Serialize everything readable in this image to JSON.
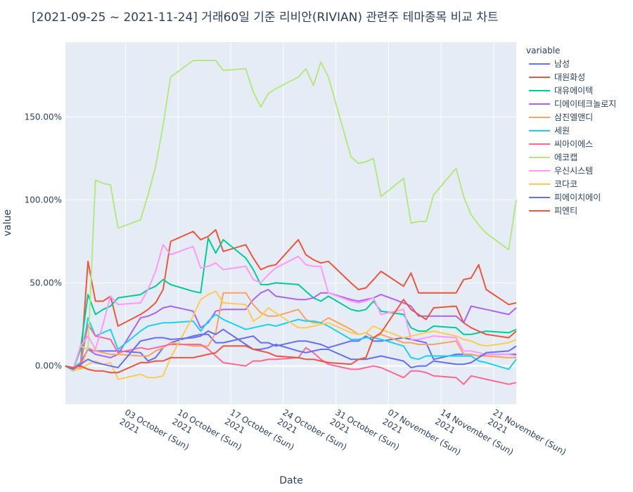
{
  "chart_data": {
    "type": "line",
    "title": "[2021-09-25 ~ 2021-11-24] 거래60일 기준 리비안(RIVIAN) 관련주 테마종목 비교 차트",
    "xlabel": "Date",
    "ylabel": "value",
    "legend_title": "variable",
    "legend_position": "right",
    "grid": true,
    "x_range": [
      "2021-09-25",
      "2021-11-24"
    ],
    "ylim": [
      -0.23,
      1.95
    ],
    "yticks": [
      0,
      0.5,
      1.0,
      1.5
    ],
    "ytick_labels": [
      "0.00%",
      "50.00%",
      "100.00%",
      "150.00%"
    ],
    "xticks": [
      "2021-10-03",
      "2021-10-10",
      "2021-10-17",
      "2021-10-24",
      "2021-10-31",
      "2021-11-07",
      "2021-11-14",
      "2021-11-21"
    ],
    "xtick_labels": [
      [
        "03 October (Sun)",
        "2021"
      ],
      [
        "10 October (Sun)",
        "2021"
      ],
      [
        "17 October (Sun)",
        "2021"
      ],
      [
        "24 October (Sun)",
        "2021"
      ],
      [
        "31 October (Sun)",
        "2021"
      ],
      [
        "07 November (Sun)",
        "2021"
      ],
      [
        "14 November (Sun)",
        "2021"
      ],
      [
        "21 November (Sun)",
        "2021"
      ]
    ],
    "dates": [
      "2021-09-25",
      "2021-09-26",
      "2021-09-27",
      "2021-09-28",
      "2021-09-29",
      "2021-09-30",
      "2021-10-01",
      "2021-10-02",
      "2021-10-05",
      "2021-10-06",
      "2021-10-07",
      "2021-10-08",
      "2021-10-09",
      "2021-10-12",
      "2021-10-13",
      "2021-10-14",
      "2021-10-15",
      "2021-10-16",
      "2021-10-19",
      "2021-10-20",
      "2021-10-21",
      "2021-10-22",
      "2021-10-23",
      "2021-10-26",
      "2021-10-27",
      "2021-10-28",
      "2021-10-29",
      "2021-10-30",
      "2021-11-02",
      "2021-11-03",
      "2021-11-04",
      "2021-11-05",
      "2021-11-06",
      "2021-11-09",
      "2021-11-10",
      "2021-11-11",
      "2021-11-12",
      "2021-11-13",
      "2021-11-16",
      "2021-11-17",
      "2021-11-18",
      "2021-11-19",
      "2021-11-20",
      "2021-11-23",
      "2021-11-24"
    ],
    "series": [
      {
        "name": "남성",
        "color": "#636efa",
        "values": [
          0,
          -0.03,
          0.02,
          0.1,
          0.09,
          0.09,
          0.09,
          0.09,
          0.08,
          0.03,
          0.05,
          0.11,
          0.14,
          0.18,
          0.19,
          0.19,
          0.14,
          0.14,
          0.17,
          0.18,
          0.14,
          0.14,
          0.12,
          0.15,
          0.15,
          0.14,
          0.13,
          0.11,
          0.15,
          0.15,
          0.18,
          0.15,
          0.15,
          0.17,
          0.16,
          0.15,
          0.14,
          0.04,
          0.07,
          0.07,
          0.07,
          0.06,
          0.07,
          0.07,
          0.07
        ]
      },
      {
        "name": "대원화성",
        "color": "#ef553b",
        "values": [
          0,
          -0.03,
          -0.01,
          0.63,
          0.39,
          0.39,
          0.42,
          0.24,
          0.31,
          0.34,
          0.38,
          0.46,
          0.75,
          0.81,
          0.76,
          0.78,
          0.82,
          0.69,
          0.73,
          0.65,
          0.58,
          0.6,
          0.61,
          0.76,
          0.67,
          0.64,
          0.62,
          0.63,
          0.5,
          0.46,
          0.47,
          0.52,
          0.57,
          0.48,
          0.56,
          0.44,
          0.44,
          0.44,
          0.44,
          0.52,
          0.53,
          0.61,
          0.46,
          0.37,
          0.38
        ]
      },
      {
        "name": "대유에이텍",
        "color": "#00cc96",
        "values": [
          0,
          -0.03,
          0.1,
          0.43,
          0.31,
          0.34,
          0.36,
          0.41,
          0.43,
          0.46,
          0.48,
          0.52,
          0.49,
          0.45,
          0.44,
          0.77,
          0.68,
          0.76,
          0.65,
          0.58,
          0.49,
          0.49,
          0.5,
          0.49,
          0.45,
          0.41,
          0.39,
          0.42,
          0.34,
          0.33,
          0.34,
          0.39,
          0.33,
          0.31,
          0.23,
          0.21,
          0.21,
          0.24,
          0.23,
          0.19,
          0.19,
          0.2,
          0.21,
          0.2,
          0.22
        ]
      },
      {
        "name": "디에이테크놀로지",
        "color": "#ab63fa",
        "values": [
          0,
          -0.01,
          0.01,
          0.1,
          0.07,
          0.06,
          0.05,
          0.07,
          0.29,
          0.3,
          0.32,
          0.35,
          0.36,
          0.33,
          0.23,
          0.26,
          0.33,
          0.34,
          0.34,
          0.4,
          0.44,
          0.46,
          0.42,
          0.4,
          0.4,
          0.41,
          0.44,
          0.44,
          0.4,
          0.39,
          0.4,
          0.41,
          0.43,
          0.38,
          0.36,
          0.3,
          0.3,
          0.3,
          0.3,
          0.26,
          0.36,
          0.35,
          0.34,
          0.31,
          0.35
        ]
      },
      {
        "name": "삼진엘앤디",
        "color": "#ffa15a",
        "values": [
          0,
          -0.03,
          -0.01,
          0.11,
          0.09,
          0.08,
          0.07,
          0.07,
          0.06,
          0.06,
          0.09,
          0.11,
          0.14,
          0.12,
          0.12,
          0.12,
          0.2,
          0.44,
          0.44,
          0.37,
          0.32,
          0.3,
          0.3,
          0.34,
          0.28,
          0.26,
          0.26,
          0.29,
          0.22,
          0.19,
          0.2,
          0.17,
          0.19,
          0.14,
          0.14,
          0.13,
          0.13,
          0.13,
          0.15,
          0.07,
          0.07,
          0.06,
          0.06,
          0.05,
          0.05
        ]
      },
      {
        "name": "세원",
        "color": "#19d3f3",
        "values": [
          0,
          -0.01,
          0.02,
          0.29,
          0.18,
          0.2,
          0.22,
          0.1,
          0.21,
          0.24,
          0.25,
          0.26,
          0.26,
          0.27,
          0.21,
          0.27,
          0.31,
          0.28,
          0.22,
          0.23,
          0.24,
          0.25,
          0.24,
          0.28,
          0.27,
          0.27,
          0.26,
          0.24,
          0.16,
          0.16,
          0.17,
          0.17,
          0.16,
          0.12,
          0.05,
          0.04,
          0.06,
          0.06,
          0.06,
          0.06,
          0.06,
          0.03,
          0.02,
          -0.02,
          0.04
        ]
      },
      {
        "name": "씨아이에스",
        "color": "#ff6692",
        "values": [
          0,
          -0.01,
          0.01,
          0.25,
          0.18,
          0.17,
          0.16,
          0.08,
          0.11,
          0.1,
          0.11,
          0.12,
          0.13,
          0.13,
          0.13,
          0.1,
          0.06,
          0.02,
          0,
          0.03,
          0.03,
          0.04,
          0.04,
          0.05,
          0.11,
          0.08,
          0.04,
          0.01,
          -0.02,
          -0.02,
          -0.01,
          0,
          -0.01,
          -0.07,
          -0.03,
          -0.03,
          -0.04,
          -0.06,
          -0.07,
          -0.11,
          -0.06,
          -0.07,
          -0.08,
          -0.11,
          -0.1
        ]
      },
      {
        "name": "에코캡",
        "color": "#b6e880",
        "values": [
          0,
          -0.03,
          0.12,
          0.1,
          1.12,
          1.1,
          1.09,
          0.83,
          0.88,
          1.03,
          1.2,
          1.45,
          1.74,
          1.84,
          1.84,
          1.84,
          1.84,
          1.78,
          1.79,
          1.65,
          1.56,
          1.64,
          1.67,
          1.74,
          1.79,
          1.69,
          1.83,
          1.74,
          1.26,
          1.22,
          1.23,
          1.25,
          1.02,
          1.13,
          0.86,
          0.87,
          0.87,
          1.03,
          1.19,
          1.02,
          0.91,
          0.85,
          0.8,
          0.7,
          1.0
        ]
      },
      {
        "name": "우신시스템",
        "color": "#ff97ff",
        "values": [
          0,
          -0.02,
          0.12,
          0.18,
          0.1,
          0.25,
          0.42,
          0.37,
          0.38,
          0.46,
          0.57,
          0.73,
          0.67,
          0.72,
          0.59,
          0.6,
          0.62,
          0.58,
          0.6,
          0.52,
          0.5,
          0.55,
          0.59,
          0.66,
          0.61,
          0.6,
          0.6,
          0.44,
          0.39,
          0.38,
          0.39,
          0.41,
          0.31,
          0.34,
          0.16,
          0.16,
          0.17,
          0.18,
          0.17,
          0.09,
          0.09,
          0.08,
          0.07,
          0.07,
          0.06
        ]
      },
      {
        "name": "코다코",
        "color": "#fecb52",
        "values": [
          0,
          -0.02,
          -0.02,
          0.01,
          0.03,
          0.01,
          0.02,
          -0.08,
          -0.05,
          -0.07,
          -0.07,
          -0.06,
          0.05,
          0.3,
          0.4,
          0.43,
          0.45,
          0.38,
          0.37,
          0.27,
          0.3,
          0.35,
          0.32,
          0.23,
          0.23,
          0.24,
          0.25,
          0.26,
          0.2,
          0.19,
          0.2,
          0.24,
          0.22,
          0.17,
          0.18,
          0.19,
          0.2,
          0.21,
          0.18,
          0.16,
          0.15,
          0.13,
          0.12,
          0.14,
          0.16
        ]
      },
      {
        "name": "피에이치에이",
        "color": "#636efa",
        "values": [
          0,
          -0.02,
          0.01,
          0.04,
          0.02,
          0.01,
          0,
          -0.01,
          0.15,
          0.16,
          0.17,
          0.17,
          0.16,
          0.17,
          0.18,
          0.21,
          0.19,
          0.22,
          0.13,
          0.1,
          0.1,
          0.11,
          0.13,
          0.09,
          0.08,
          0.09,
          0.1,
          0.1,
          0.04,
          0.04,
          0.04,
          0.05,
          0.06,
          0.03,
          -0.01,
          0,
          0,
          0.03,
          0.01,
          0.01,
          0.02,
          0.05,
          0.08,
          0.09,
          0.12
        ]
      },
      {
        "name": "피엔티",
        "color": "#ef553b",
        "values": [
          0,
          -0.01,
          0,
          -0.02,
          -0.03,
          -0.03,
          -0.04,
          -0.04,
          0.02,
          0.02,
          0.03,
          0.03,
          0.05,
          0.05,
          0.06,
          0.07,
          0.08,
          0.12,
          0.12,
          0.1,
          0.09,
          0.08,
          0.06,
          0.05,
          0.04,
          0.04,
          0.03,
          0.02,
          0.01,
          0.04,
          0.05,
          0.17,
          0.2,
          0.4,
          0.34,
          0.31,
          0.28,
          0.35,
          0.36,
          0.26,
          0.23,
          0.21,
          0.19,
          0.17,
          0.21
        ]
      }
    ]
  }
}
